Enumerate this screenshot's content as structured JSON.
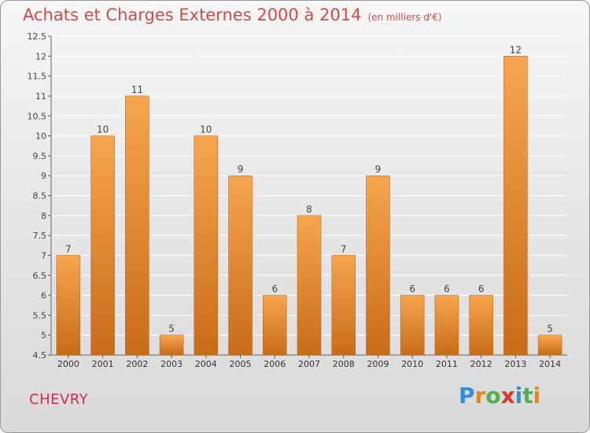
{
  "title": "Achats et Charges Externes 2000 à 2014",
  "subtitle": "(en milliers d'€)",
  "commune": "CHEVRY",
  "logo": {
    "text": "Proxiti",
    "letters": [
      "P",
      "r",
      "o",
      "x",
      "i",
      "t",
      "i"
    ],
    "colors": [
      "#2f8fd8",
      "#e08a1e",
      "#4caf50",
      "#e0352b",
      "#2f8fd8",
      "#4caf50",
      "#e08a1e"
    ]
  },
  "colors": {
    "bar_top": "#f7a54f",
    "bar_bottom": "#c86c17",
    "title": "#d44a4a",
    "commune": "#cc2e4a"
  },
  "chart_data": {
    "type": "bar",
    "title": "Achats et Charges Externes 2000 à 2014",
    "subtitle": "(en milliers d'€)",
    "categories": [
      "2000",
      "2001",
      "2002",
      "2003",
      "2004",
      "2005",
      "2006",
      "2007",
      "2008",
      "2009",
      "2010",
      "2011",
      "2012",
      "2013",
      "2014"
    ],
    "values": [
      7,
      10,
      11,
      5,
      10,
      9,
      6,
      8,
      7,
      9,
      6,
      6,
      6,
      12,
      5
    ],
    "value_labels": [
      "7",
      "10",
      "11",
      "5",
      "10",
      "9",
      "6",
      "8",
      "7",
      "9",
      "6",
      "6",
      "6",
      "12",
      "5"
    ],
    "ylim": [
      4.5,
      12.5
    ],
    "yticks": [
      4.5,
      5,
      5.5,
      6,
      6.5,
      7,
      7.5,
      8,
      8.5,
      9,
      9.5,
      10,
      10.5,
      11,
      11.5,
      12,
      12.5
    ],
    "ytick_labels": [
      "4.5",
      "5",
      "5.5",
      "6",
      "6.5",
      "7",
      "7.5",
      "8",
      "8.5",
      "9",
      "9.5",
      "10",
      "10.5",
      "11",
      "11.5",
      "12",
      "12.5"
    ],
    "grid": true,
    "xlabel": "",
    "ylabel": ""
  }
}
